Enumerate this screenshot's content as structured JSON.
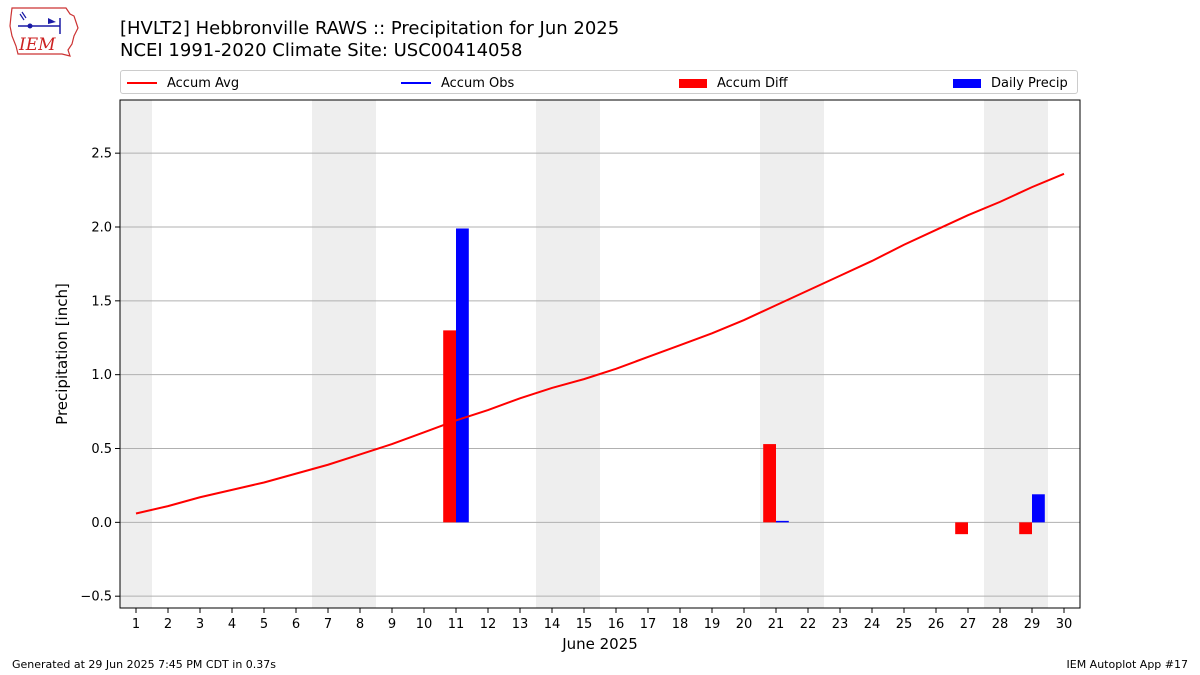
{
  "header": {
    "title_line1": "[HVLT2] Hebbronville RAWS :: Precipitation for Jun 2025",
    "title_line2": "NCEI 1991-2020 Climate Site: USC00414058",
    "logo_text": "IEM"
  },
  "legend": {
    "items": [
      {
        "label": "Accum Avg",
        "kind": "line",
        "color": "#ff0000"
      },
      {
        "label": "Accum Obs",
        "kind": "line",
        "color": "#0000ff"
      },
      {
        "label": "Accum Diff",
        "kind": "bar",
        "color": "#ff0000"
      },
      {
        "label": "Daily Precip",
        "kind": "bar",
        "color": "#0000ff"
      }
    ]
  },
  "footer": {
    "left": "Generated at 29 Jun 2025 7:45 PM CDT in 0.37s",
    "right": "IEM Autoplot App #17"
  },
  "chart_data": {
    "type": "bar",
    "xlabel": "June 2025",
    "ylabel": "Precipitation [inch]",
    "ylim": [
      -0.58,
      2.86
    ],
    "yticks": [
      -0.5,
      0.0,
      0.5,
      1.0,
      1.5,
      2.0,
      2.5
    ],
    "xlim": [
      0.5,
      30.5
    ],
    "x": [
      1,
      2,
      3,
      4,
      5,
      6,
      7,
      8,
      9,
      10,
      11,
      12,
      13,
      14,
      15,
      16,
      17,
      18,
      19,
      20,
      21,
      22,
      23,
      24,
      25,
      26,
      27,
      28,
      29,
      30
    ],
    "weekend_shading": [
      [
        0.5,
        1.5
      ],
      [
        6.5,
        8.5
      ],
      [
        13.5,
        15.5
      ],
      [
        20.5,
        22.5
      ],
      [
        27.5,
        29.5
      ]
    ],
    "grid": "y",
    "series": [
      {
        "name": "Accum Avg",
        "kind": "line",
        "color": "#ff0000",
        "values": [
          0.06,
          0.11,
          0.17,
          0.22,
          0.27,
          0.33,
          0.39,
          0.46,
          0.53,
          0.61,
          0.69,
          0.76,
          0.84,
          0.91,
          0.97,
          1.04,
          1.12,
          1.2,
          1.28,
          1.37,
          1.47,
          1.57,
          1.67,
          1.77,
          1.88,
          1.98,
          2.08,
          2.17,
          2.27,
          2.36
        ]
      },
      {
        "name": "Accum Diff",
        "kind": "bar",
        "color": "#ff0000",
        "points": [
          {
            "x": 11,
            "value": 1.3
          },
          {
            "x": 21,
            "value": 0.53
          },
          {
            "x": 27,
            "value": -0.08
          },
          {
            "x": 29,
            "value": -0.08
          }
        ]
      },
      {
        "name": "Daily Precip",
        "kind": "bar",
        "color": "#0000ff",
        "points": [
          {
            "x": 11,
            "value": 1.99
          },
          {
            "x": 21,
            "value": 0.01
          },
          {
            "x": 29,
            "value": 0.19
          }
        ]
      }
    ]
  }
}
